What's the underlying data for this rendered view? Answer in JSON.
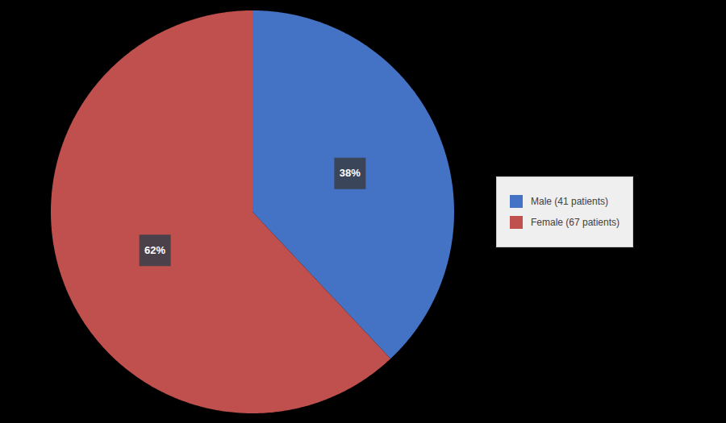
{
  "chart_data": {
    "type": "pie",
    "categories": [
      "Male (41 patients)",
      "Female (67 patients)"
    ],
    "values": [
      38,
      62
    ],
    "value_labels": [
      "38%",
      "62%"
    ],
    "colors": [
      "#4472C4",
      "#C0504D"
    ],
    "data_labels": true,
    "legend": "right"
  }
}
